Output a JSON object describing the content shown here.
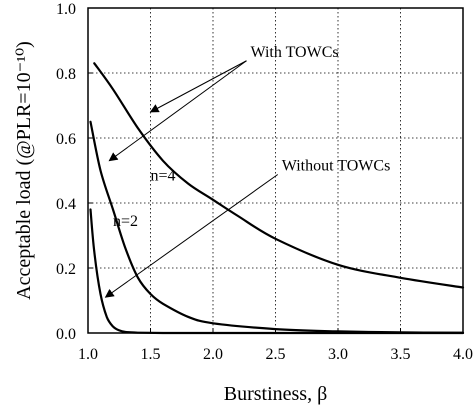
{
  "chart_data": {
    "type": "line",
    "title": "",
    "xlabel": "Burstiness, β",
    "ylabel": "Acceptable load (@PLR=10⁻¹⁰)",
    "xlim": [
      1.0,
      4.0
    ],
    "ylim": [
      0.0,
      1.0
    ],
    "grid": true,
    "legend": "none",
    "x_ticks": [
      "1.0",
      "1.5",
      "2.0",
      "2.5",
      "3.0",
      "3.5",
      "4.0"
    ],
    "y_ticks": [
      "0.0",
      "0.2",
      "0.4",
      "0.6",
      "0.8",
      "1.0"
    ],
    "series": [
      {
        "name": "n=4",
        "x": [
          1.05,
          1.2,
          1.4,
          1.6,
          1.8,
          2.0,
          2.2,
          2.5,
          3.0,
          3.5,
          4.0
        ],
        "y": [
          0.83,
          0.75,
          0.63,
          0.53,
          0.46,
          0.41,
          0.36,
          0.29,
          0.21,
          0.17,
          0.14
        ]
      },
      {
        "name": "n=2",
        "x": [
          1.02,
          1.1,
          1.2,
          1.3,
          1.4,
          1.5,
          1.6,
          1.8,
          2.0,
          2.5,
          3.0,
          3.5,
          4.0
        ],
        "y": [
          0.65,
          0.5,
          0.38,
          0.26,
          0.17,
          0.12,
          0.09,
          0.05,
          0.03,
          0.012,
          0.005,
          0.002,
          0.001
        ]
      },
      {
        "name": "",
        "x": [
          1.02,
          1.05,
          1.1,
          1.15,
          1.2,
          1.25,
          1.3,
          1.4,
          1.6,
          2.0,
          3.0,
          4.0
        ],
        "y": [
          0.38,
          0.25,
          0.12,
          0.05,
          0.02,
          0.008,
          0.003,
          0.001,
          0.0,
          0.0,
          0.0,
          0.0
        ]
      }
    ],
    "annotations": [
      {
        "text": "With TOWCs",
        "x": 2.3,
        "y": 0.85,
        "points_to": [
          [
            1.5,
            0.68
          ],
          [
            1.17,
            0.53
          ]
        ]
      },
      {
        "text": "Without TOWCs",
        "x": 2.55,
        "y": 0.5,
        "points_to": [
          [
            1.14,
            0.11
          ]
        ]
      },
      {
        "text": "n=4",
        "x": 1.6,
        "y": 0.47
      },
      {
        "text": "n=2",
        "x": 1.3,
        "y": 0.33
      }
    ]
  }
}
